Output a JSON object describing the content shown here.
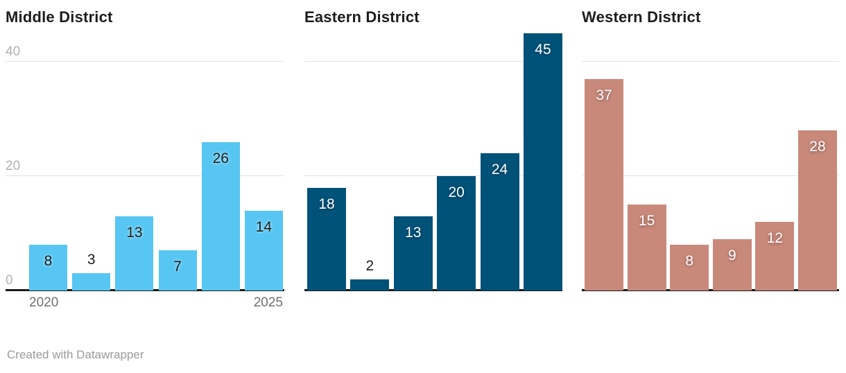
{
  "footer": {
    "credit": "Created with Datawrapper"
  },
  "axis_colors": {
    "gridline": "#e2e2e2",
    "baseline": "#1a1a1a"
  },
  "chart_data": [
    {
      "type": "bar",
      "title": "Middle District",
      "categories": [
        "2020",
        "",
        "",
        "",
        "",
        "2025"
      ],
      "values": [
        8,
        3,
        13,
        7,
        26,
        14
      ],
      "bar_color": "#57c6f2",
      "label_style": "dark",
      "y_tick_labels": [
        "40",
        "20",
        "0"
      ],
      "y_gridlines": [
        40,
        20
      ],
      "ylim": [
        0,
        40
      ],
      "xlabel": "",
      "ylabel": "",
      "legend": "none",
      "grid": "horizontal"
    },
    {
      "type": "bar",
      "title": "Eastern District",
      "categories": [
        "",
        "",
        "",
        "",
        "",
        ""
      ],
      "values": [
        18,
        2,
        13,
        20,
        24,
        45
      ],
      "bar_color": "#015279",
      "label_style": "light",
      "y_tick_labels": [],
      "y_gridlines": [
        40,
        20
      ],
      "ylim": [
        0,
        40
      ],
      "xlabel": "",
      "ylabel": "",
      "legend": "none",
      "grid": "horizontal"
    },
    {
      "type": "bar",
      "title": "Western District",
      "categories": [
        "",
        "",
        "",
        "",
        "",
        ""
      ],
      "values": [
        37,
        15,
        8,
        9,
        12,
        28
      ],
      "bar_color": "#c8897b",
      "label_style": "light",
      "y_tick_labels": [],
      "y_gridlines": [
        40,
        20
      ],
      "ylim": [
        0,
        40
      ],
      "xlabel": "",
      "ylabel": "",
      "legend": "none",
      "grid": "horizontal"
    }
  ]
}
